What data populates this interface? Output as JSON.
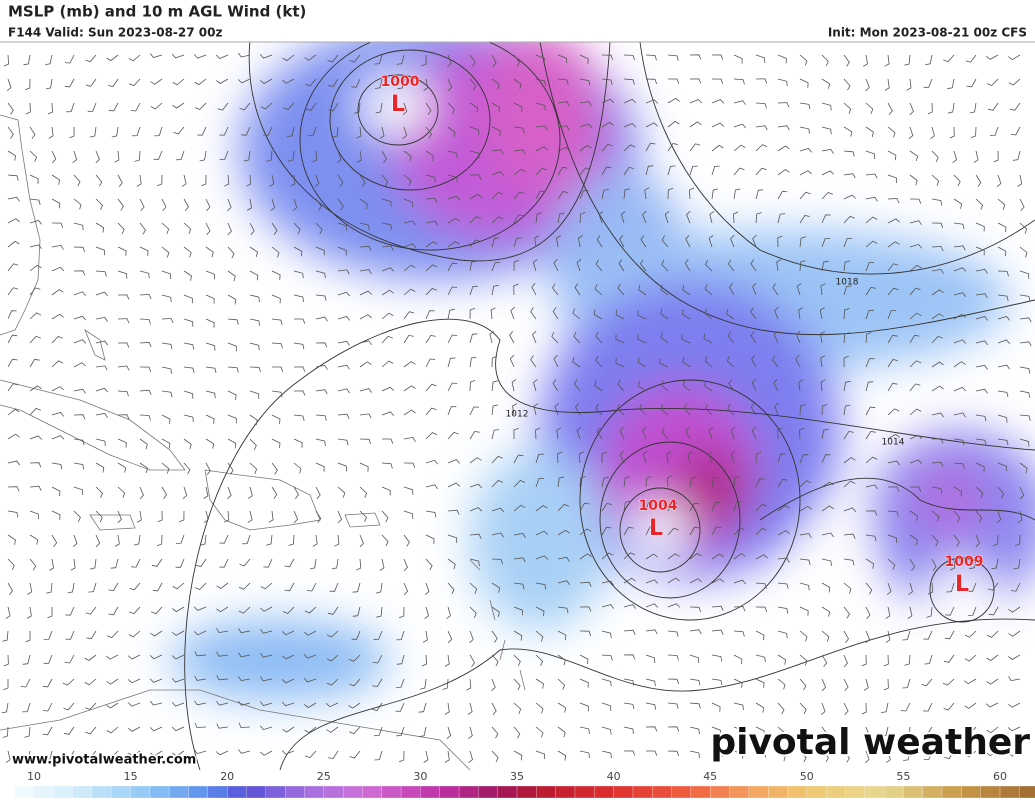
{
  "header": {
    "title": "MSLP (mb) and 10 m AGL Wind (kt)",
    "valid": "F144 Valid: Sun 2023-08-27 00z",
    "init": "Init: Mon 2023-08-21 00z CFS"
  },
  "lows": [
    {
      "pressure": "1000",
      "symbol": "L"
    },
    {
      "pressure": "1004",
      "symbol": "L"
    },
    {
      "pressure": "1009",
      "symbol": "L"
    }
  ],
  "isobar_labels": [
    "1018",
    "1012",
    "1014"
  ],
  "footer": {
    "website": "www.pivotalweather.com",
    "logo": "pivotal weather"
  },
  "colorbar": {
    "ticks": [
      10,
      15,
      20,
      25,
      30,
      35,
      40,
      45,
      50,
      55,
      60
    ]
  }
}
